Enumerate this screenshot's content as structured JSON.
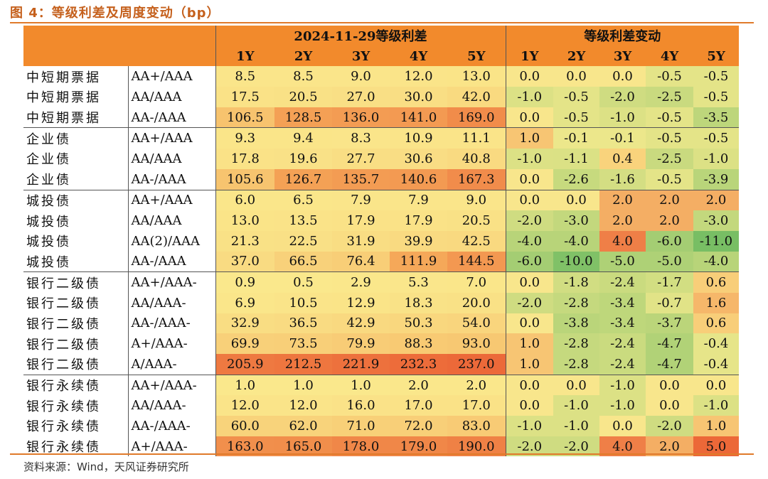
{
  "title": "图 4：等级利差及周度变动（bp）",
  "header": {
    "group_left": "2024-11-29等级利差",
    "group_right": "等级利差变动",
    "tenors": [
      "1Y",
      "2Y",
      "3Y",
      "4Y",
      "5Y"
    ]
  },
  "rows": [
    {
      "category": "中短期票据",
      "rating": "AA+/AAA",
      "spreads": [
        "8.5",
        "8.5",
        "9.0",
        "12.0",
        "13.0"
      ],
      "changes": [
        "0.0",
        "0.0",
        "0.0",
        "-0.5",
        "-0.5"
      ]
    },
    {
      "category": "中短期票据",
      "rating": "AA/AAA",
      "spreads": [
        "17.5",
        "20.5",
        "27.0",
        "30.0",
        "42.0"
      ],
      "changes": [
        "-1.0",
        "-0.5",
        "-2.0",
        "-2.5",
        "-0.5"
      ]
    },
    {
      "category": "中短期票据",
      "rating": "AA-/AAA",
      "spreads": [
        "106.5",
        "128.5",
        "136.0",
        "141.0",
        "169.0"
      ],
      "changes": [
        "0.0",
        "-0.5",
        "-1.0",
        "-0.5",
        "-3.5"
      ]
    },
    {
      "category": "企业债",
      "rating": "AA+/AAA",
      "spreads": [
        "9.3",
        "9.4",
        "8.3",
        "10.9",
        "11.1"
      ],
      "changes": [
        "1.0",
        "-0.1",
        "-0.1",
        "-0.5",
        "-0.5"
      ]
    },
    {
      "category": "企业债",
      "rating": "AA/AAA",
      "spreads": [
        "17.8",
        "19.6",
        "27.7",
        "30.6",
        "40.8"
      ],
      "changes": [
        "-1.0",
        "-1.1",
        "0.4",
        "-2.5",
        "-1.0"
      ]
    },
    {
      "category": "企业债",
      "rating": "AA-/AAA",
      "spreads": [
        "105.6",
        "126.7",
        "135.7",
        "140.6",
        "167.3"
      ],
      "changes": [
        "0.0",
        "-2.6",
        "-1.6",
        "-0.5",
        "-3.9"
      ]
    },
    {
      "category": "城投债",
      "rating": "AA+/AAA",
      "spreads": [
        "6.0",
        "6.5",
        "7.9",
        "7.9",
        "9.0"
      ],
      "changes": [
        "0.0",
        "0.0",
        "2.0",
        "2.0",
        "2.0"
      ]
    },
    {
      "category": "城投债",
      "rating": "AA/AAA",
      "spreads": [
        "13.0",
        "13.5",
        "17.9",
        "17.9",
        "20.5"
      ],
      "changes": [
        "-2.0",
        "-3.0",
        "2.0",
        "2.0",
        "-3.0"
      ]
    },
    {
      "category": "城投债",
      "rating": "AA(2)/AAA",
      "spreads": [
        "21.3",
        "22.5",
        "31.9",
        "39.9",
        "42.5"
      ],
      "changes": [
        "-4.0",
        "-4.0",
        "4.0",
        "-6.0",
        "-11.0"
      ]
    },
    {
      "category": "城投债",
      "rating": "AA-/AAA",
      "spreads": [
        "37.0",
        "66.5",
        "76.4",
        "111.9",
        "144.5"
      ],
      "changes": [
        "-6.0",
        "-10.0",
        "-5.0",
        "-5.0",
        "-4.0"
      ]
    },
    {
      "category": "银行二级债",
      "rating": "AA+/AAA-",
      "spreads": [
        "0.9",
        "0.5",
        "2.9",
        "5.3",
        "7.0"
      ],
      "changes": [
        "0.0",
        "-1.8",
        "-2.4",
        "-1.7",
        "0.6"
      ]
    },
    {
      "category": "银行二级债",
      "rating": "AA/AAA-",
      "spreads": [
        "6.9",
        "10.5",
        "12.9",
        "18.3",
        "20.0"
      ],
      "changes": [
        "-2.0",
        "-2.8",
        "-3.4",
        "-0.7",
        "1.6"
      ]
    },
    {
      "category": "银行二级债",
      "rating": "AA-/AAA-",
      "spreads": [
        "32.9",
        "36.5",
        "42.9",
        "50.3",
        "54.0"
      ],
      "changes": [
        "0.0",
        "-3.8",
        "-3.4",
        "-3.7",
        "0.6"
      ]
    },
    {
      "category": "银行二级债",
      "rating": "A+/AAA-",
      "spreads": [
        "69.9",
        "73.5",
        "79.9",
        "88.3",
        "93.0"
      ],
      "changes": [
        "1.0",
        "-2.8",
        "-2.4",
        "-4.7",
        "-0.4"
      ]
    },
    {
      "category": "银行二级债",
      "rating": "A/AAA-",
      "spreads": [
        "205.9",
        "212.5",
        "221.9",
        "232.3",
        "237.0"
      ],
      "changes": [
        "1.0",
        "-2.8",
        "-2.4",
        "-4.7",
        "-0.4"
      ]
    },
    {
      "category": "银行永续债",
      "rating": "AA+/AAA-",
      "spreads": [
        "1.0",
        "1.0",
        "1.0",
        "2.0",
        "2.0"
      ],
      "changes": [
        "0.0",
        "0.0",
        "-1.0",
        "0.0",
        "0.0"
      ]
    },
    {
      "category": "银行永续债",
      "rating": "AA/AAA-",
      "spreads": [
        "12.0",
        "12.0",
        "16.0",
        "17.0",
        "17.0"
      ],
      "changes": [
        "0.0",
        "-1.0",
        "-1.0",
        "0.0",
        "-1.0"
      ]
    },
    {
      "category": "银行永续债",
      "rating": "AA-/AAA-",
      "spreads": [
        "60.0",
        "62.0",
        "71.0",
        "72.0",
        "83.0"
      ],
      "changes": [
        "-1.0",
        "-1.0",
        "0.0",
        "-2.0",
        "1.0"
      ]
    },
    {
      "category": "银行永续债",
      "rating": "A+/AAA-",
      "spreads": [
        "163.0",
        "165.0",
        "178.0",
        "179.0",
        "190.0"
      ],
      "changes": [
        "-2.0",
        "-2.0",
        "4.0",
        "2.0",
        "5.0"
      ]
    }
  ],
  "source": "资料来源：Wind，天风证券研究所"
}
